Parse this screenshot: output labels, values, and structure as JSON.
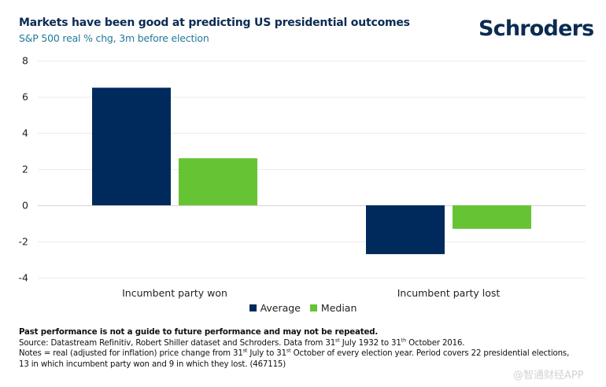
{
  "header": {
    "title": "Markets have been good at predicting US presidential outcomes",
    "subtitle": "S&P 500 real % chg, 3m before election",
    "logo": "Schroders"
  },
  "colors": {
    "average": "#002a5c",
    "median": "#66c434",
    "gridline": "#ececec",
    "zeroline": "#d4d4d4"
  },
  "chart_data": {
    "type": "bar",
    "title": "Markets have been good at predicting US presidential outcomes",
    "subtitle": "S&P 500 real % chg, 3m before election",
    "xlabel": "",
    "ylabel": "",
    "categories": [
      "Incumbent party won",
      "Incumbent party lost"
    ],
    "series": [
      {
        "name": "Average",
        "values": [
          6.5,
          -2.7
        ]
      },
      {
        "name": "Median",
        "values": [
          2.6,
          -1.3
        ]
      }
    ],
    "ylim": [
      -4,
      8
    ],
    "yticks": [
      8,
      6,
      4,
      2,
      0,
      -2,
      -4
    ],
    "ytick_labels": [
      "8",
      "6",
      "4",
      "2",
      "0",
      "-2",
      "-4"
    ],
    "grid": true,
    "legend": {
      "position": "bottom",
      "entries": [
        "Average",
        "Median"
      ]
    }
  },
  "footer": {
    "disclaimer": "Past performance is not a guide to future performance and may not be repeated.",
    "source_parts": [
      "Source: Datastream Refinitiv, Robert Shiller dataset and Schroders. Data from 31",
      "st",
      " July 1932 to 31",
      "th",
      " October 2016."
    ],
    "notes_parts": [
      "Notes = real (adjusted for inflation) price change from 31",
      "st",
      " July to 31",
      "st",
      " October of every election year. Period covers 22 presidential elections,"
    ],
    "notes_line2": "13 in which incumbent party won and 9 in which they lost. (467115)"
  },
  "watermark": "@智通财经APP"
}
